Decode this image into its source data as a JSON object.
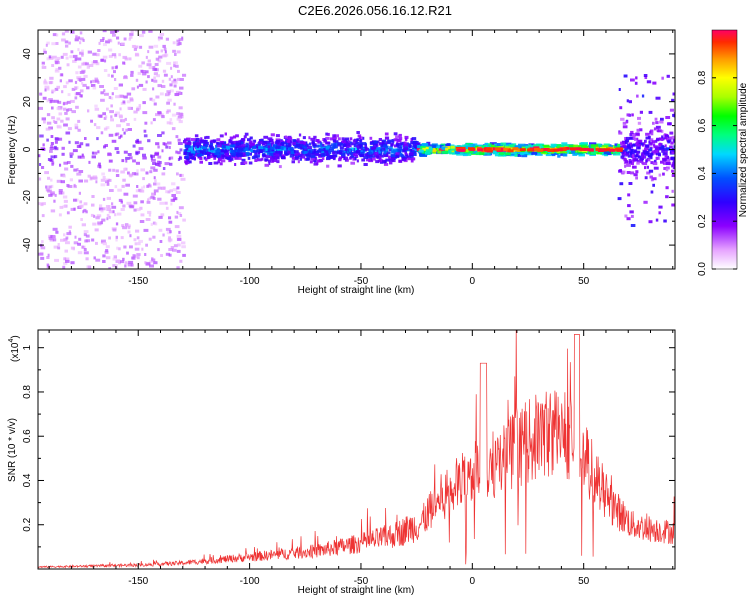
{
  "title": "C2E6.2026.056.16.12.R21",
  "chart_data": [
    {
      "type": "heatmap",
      "xlabel": "Height of straight line (km)",
      "ylabel": "Frequency (Hz)",
      "xlim": [
        -195,
        91
      ],
      "ylim": [
        -50,
        50
      ],
      "xticks": [
        -150,
        -100,
        -50,
        0,
        50
      ],
      "yticks": [
        -40,
        -20,
        0,
        20,
        40
      ],
      "colorbar": {
        "label": "Normalized spectral amplitude",
        "range": [
          0,
          1
        ],
        "ticks": [
          0.0,
          0.2,
          0.4,
          0.6,
          0.8
        ],
        "colormap": "white-magenta-blue-cyan-green-yellow-orange-red"
      },
      "description_bands": [
        {
          "x_range": [
            -195,
            -130
          ],
          "freq_spread": 50,
          "amplitude": 0.12
        },
        {
          "x_range": [
            -130,
            -25
          ],
          "freq_spread": 8,
          "amplitude": 0.35
        },
        {
          "x_range": [
            -25,
            65
          ],
          "freq_spread": 3,
          "amplitude": 0.75
        },
        {
          "x_range": [
            65,
            91
          ],
          "freq_spread": 15,
          "amplitude": 0.25
        }
      ]
    },
    {
      "type": "line",
      "xlabel": "Height of straight line (km)",
      "ylabel": "SNR (10 * v/v)",
      "multiplier": "(x10",
      "multiplier_exp": "4",
      "xlim": [
        -195,
        91
      ],
      "ylim": [
        0,
        1.08
      ],
      "xticks": [
        -150,
        -100,
        -50,
        0,
        50
      ],
      "yticks": [
        0.2,
        0.4,
        0.6,
        0.8,
        1.0
      ],
      "color": "#ee3333",
      "envelope": {
        "x": [
          -195,
          -170,
          -150,
          -130,
          -110,
          -90,
          -70,
          -50,
          -35,
          -25,
          -15,
          -8,
          0,
          10,
          20,
          30,
          38,
          45,
          50,
          58,
          65,
          72,
          80,
          91
        ],
        "y": [
          0.01,
          0.015,
          0.02,
          0.03,
          0.05,
          0.07,
          0.09,
          0.13,
          0.17,
          0.22,
          0.38,
          0.45,
          0.52,
          0.58,
          0.66,
          0.73,
          0.76,
          0.72,
          0.62,
          0.45,
          0.32,
          0.24,
          0.22,
          0.2
        ]
      }
    }
  ]
}
